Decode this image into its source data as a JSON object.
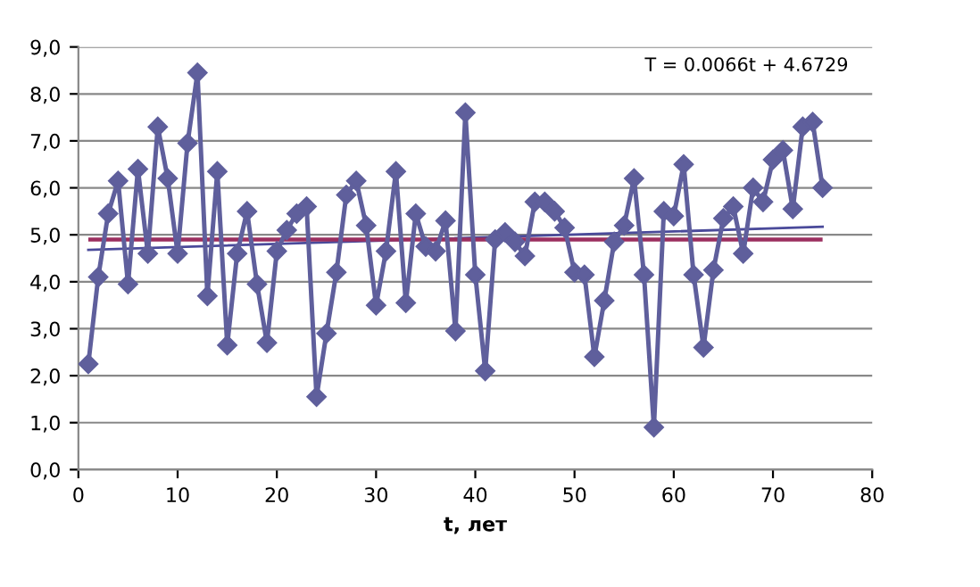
{
  "chart_data": {
    "type": "line",
    "xlabel": "t, лет",
    "x": [
      1,
      2,
      3,
      4,
      5,
      6,
      7,
      8,
      9,
      10,
      11,
      12,
      13,
      14,
      15,
      16,
      17,
      18,
      19,
      20,
      21,
      22,
      23,
      24,
      25,
      26,
      27,
      28,
      29,
      30,
      31,
      32,
      33,
      34,
      35,
      36,
      37,
      38,
      39,
      40,
      41,
      42,
      43,
      44,
      45,
      46,
      47,
      48,
      49,
      50,
      51,
      52,
      53,
      54,
      55,
      56,
      57,
      58,
      59,
      60,
      61,
      62,
      63,
      64,
      65,
      66,
      67,
      68,
      69,
      70,
      71,
      72,
      73,
      74,
      75
    ],
    "series": [
      {
        "color": "#5f5f9c",
        "marker": "diamond",
        "values": [
          2.25,
          4.1,
          5.45,
          6.15,
          3.95,
          6.4,
          4.6,
          7.3,
          6.2,
          4.6,
          6.95,
          8.45,
          3.7,
          6.35,
          2.65,
          4.6,
          5.5,
          3.95,
          2.7,
          4.65,
          5.1,
          5.45,
          5.6,
          1.55,
          2.9,
          4.2,
          5.85,
          6.15,
          5.2,
          3.5,
          4.65,
          6.35,
          3.55,
          5.45,
          4.75,
          4.65,
          5.3,
          2.95,
          7.6,
          4.15,
          2.1,
          4.9,
          5.05,
          4.85,
          4.55,
          5.7,
          5.7,
          5.5,
          5.15,
          4.2,
          4.15,
          2.4,
          3.6,
          4.85,
          5.2,
          6.2,
          4.15,
          0.9,
          5.5,
          5.4,
          6.5,
          4.15,
          2.6,
          4.25,
          5.35,
          5.6,
          4.6,
          6.0,
          5.7,
          6.6,
          6.8,
          5.55,
          7.3,
          7.4,
          6.0
        ]
      },
      {
        "type": "line",
        "color": "#4a4a9a",
        "x": [
          1,
          75
        ],
        "values": [
          4.68,
          5.17
        ]
      }
    ],
    "ref_lines": [
      {
        "axis": "y",
        "value": 4.9,
        "color": "#9b2f5f"
      }
    ],
    "annotations": [
      "T = 0.0066t + 4.6729"
    ],
    "xlim": [
      0,
      80
    ],
    "xticks": [
      0,
      10,
      20,
      30,
      40,
      50,
      60,
      70,
      80
    ],
    "ylim": [
      0,
      9
    ],
    "yticks": [
      {
        "value": 0,
        "label": "0,0"
      },
      {
        "value": 1,
        "label": "1,0"
      },
      {
        "value": 2,
        "label": "2,0"
      },
      {
        "value": 3,
        "label": "3,0"
      },
      {
        "value": 4,
        "label": "4,0"
      },
      {
        "value": 5,
        "label": "5,0"
      },
      {
        "value": 6,
        "label": "6,0"
      },
      {
        "value": 7,
        "label": "7,0"
      },
      {
        "value": 8,
        "label": "8,0"
      },
      {
        "value": 9,
        "label": "9,0"
      }
    ],
    "grid": "y",
    "legend": false
  }
}
